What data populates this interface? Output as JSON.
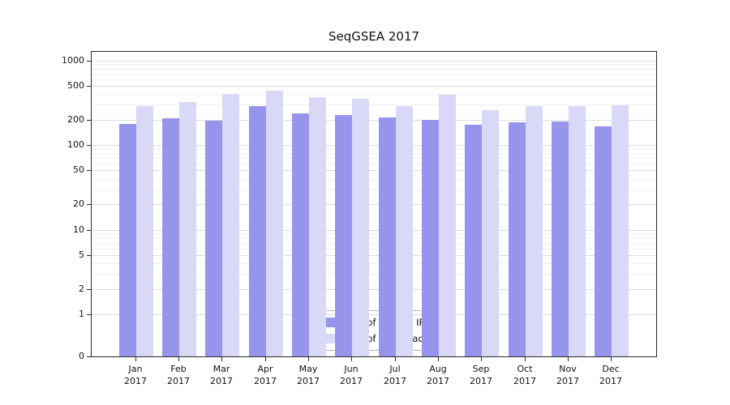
{
  "chart_data": {
    "type": "bar",
    "title": "SeqGSEA 2017",
    "categories": [
      "Jan",
      "Feb",
      "Mar",
      "Apr",
      "May",
      "Jun",
      "Jul",
      "Aug",
      "Sep",
      "Oct",
      "Nov",
      "Dec"
    ],
    "year": "2017",
    "series": [
      {
        "name": "Nb of distinct IPs",
        "color": "#9795eb",
        "values": [
          178,
          205,
          195,
          290,
          235,
          225,
          212,
          200,
          172,
          185,
          190,
          165
        ]
      },
      {
        "name": "Nb of downloads",
        "color": "#d9d8f7",
        "values": [
          285,
          320,
          400,
          440,
          370,
          355,
          285,
          390,
          260,
          290,
          290,
          295
        ]
      }
    ],
    "y_ticks": [
      0,
      1,
      2,
      5,
      10,
      20,
      50,
      100,
      200,
      500,
      1000
    ],
    "y_scale": "log",
    "ylim": [
      0,
      1000
    ],
    "xlabel": "",
    "ylabel": "",
    "grid": true,
    "legend_position": "lower center"
  }
}
